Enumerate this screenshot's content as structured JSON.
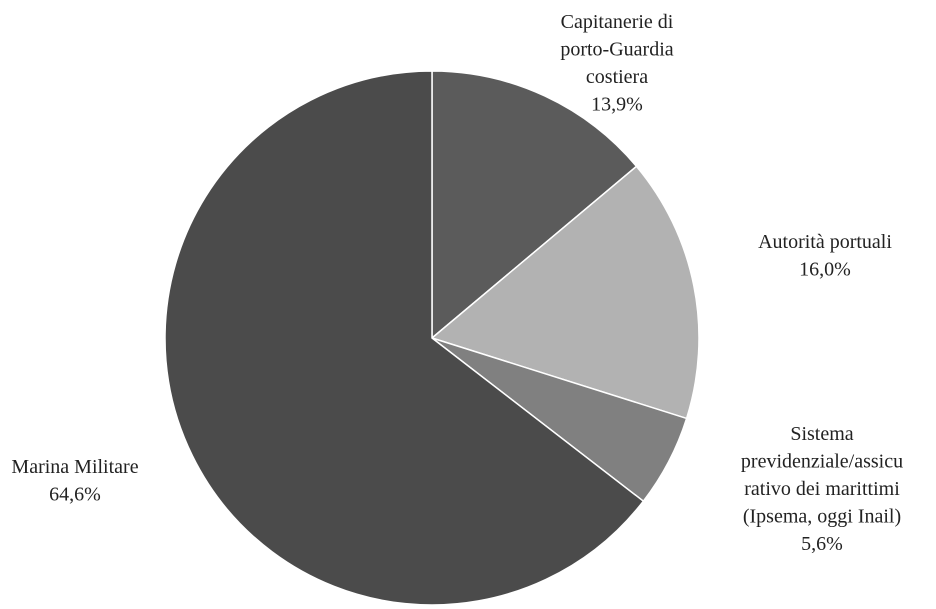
{
  "chart_data": {
    "type": "pie",
    "categories": [
      "Capitanerie di\nporto-Guardia\ncostiera",
      "Autorità portuali",
      "Sistema\nprevidenziale/assicu\nrativo dei marittimi\n(Ipsema, oggi Inail)",
      "Marina Militare"
    ],
    "values": [
      13.9,
      16.0,
      5.6,
      64.6
    ],
    "value_labels": [
      "13,9%",
      "16,0%",
      "5,6%",
      "64,6%"
    ],
    "colors": [
      "#5b5b5b",
      "#b2b2b2",
      "#808080",
      "#4b4b4b"
    ]
  }
}
